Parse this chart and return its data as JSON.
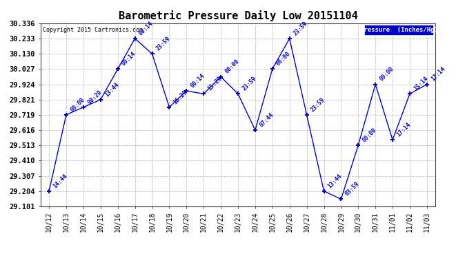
{
  "title": "Barometric Pressure Daily Low 20151104",
  "ylabel": "Pressure  (Inches/Hg)",
  "copyright": "Copyright 2015 Cartronics.com",
  "line_color": "#0000cc",
  "background_color": "#ffffff",
  "grid_color": "#b0b0b0",
  "legend_bg": "#0000cc",
  "ylim": [
    29.101,
    30.336
  ],
  "yticks": [
    29.101,
    29.204,
    29.307,
    29.41,
    29.513,
    29.616,
    29.719,
    29.821,
    29.924,
    30.027,
    30.13,
    30.233,
    30.336
  ],
  "dates": [
    "10/12",
    "10/13",
    "10/14",
    "10/15",
    "10/16",
    "10/17",
    "10/18",
    "10/19",
    "10/20",
    "10/21",
    "10/22",
    "10/23",
    "10/24",
    "10/25",
    "10/26",
    "10/27",
    "10/28",
    "10/29",
    "10/30",
    "10/31",
    "11/01",
    "11/02",
    "11/03"
  ],
  "values": [
    29.204,
    29.719,
    29.77,
    29.821,
    30.027,
    30.233,
    30.13,
    29.77,
    29.88,
    29.86,
    29.975,
    29.86,
    29.616,
    30.027,
    30.233,
    29.719,
    29.204,
    29.15,
    29.513,
    29.924,
    29.55,
    29.86,
    29.924
  ],
  "annotations": [
    "14:44",
    "00:00",
    "00:29",
    "13:44",
    "00:14",
    "00:14",
    "23:59",
    "16:29",
    "00:14",
    "15:29",
    "00:00",
    "23:59",
    "07:44",
    "00:00",
    "23:59",
    "23:59",
    "13:44",
    "03:59",
    "00:00",
    "00:00",
    "17:14",
    "15:14",
    "17:14"
  ]
}
